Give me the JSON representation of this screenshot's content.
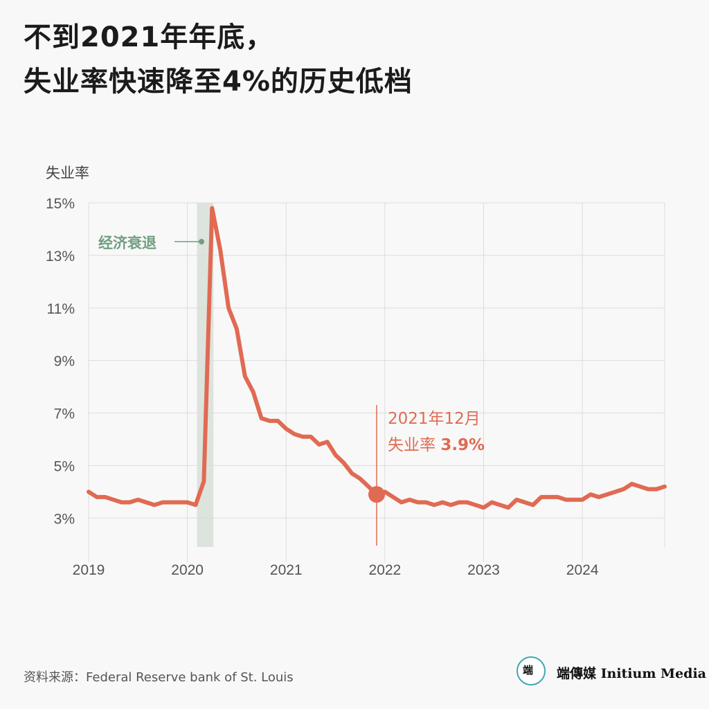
{
  "title": {
    "line1": "不到2021年年底，",
    "line2": "失业率快速降至4%的历史低档"
  },
  "chart_data": {
    "type": "line",
    "ylabel": "失业率",
    "y_ticks": [
      3,
      5,
      7,
      9,
      11,
      13,
      15
    ],
    "y_tick_labels": [
      "3%",
      "5%",
      "7%",
      "9%",
      "11%",
      "13%",
      "15%"
    ],
    "ylim": [
      1.9,
      15.0
    ],
    "x_ticks": [
      "2019",
      "2020",
      "2021",
      "2022",
      "2023",
      "2024"
    ],
    "x_range": [
      "2019-01",
      "2024-11"
    ],
    "grid": true,
    "line_color": "#e06a52",
    "recession": {
      "label": "经济衰退",
      "start": "2020-02",
      "end": "2020-04",
      "color": "#dde3dd",
      "label_color": "#6f9e80"
    },
    "annotation": {
      "date": "2021-12",
      "value": 3.9,
      "line1": "2021年12月",
      "line2_prefix": "失业率 ",
      "line2_value": "3.9%"
    },
    "series": [
      {
        "x": [
          "2019-01",
          "2019-02",
          "2019-03",
          "2019-04",
          "2019-05",
          "2019-06",
          "2019-07",
          "2019-08",
          "2019-09",
          "2019-10",
          "2019-11",
          "2019-12",
          "2020-01",
          "2020-02",
          "2020-03",
          "2020-04",
          "2020-05",
          "2020-06",
          "2020-07",
          "2020-08",
          "2020-09",
          "2020-10",
          "2020-11",
          "2020-12",
          "2021-01",
          "2021-02",
          "2021-03",
          "2021-04",
          "2021-05",
          "2021-06",
          "2021-07",
          "2021-08",
          "2021-09",
          "2021-10",
          "2021-11",
          "2021-12",
          "2022-01",
          "2022-02",
          "2022-03",
          "2022-04",
          "2022-05",
          "2022-06",
          "2022-07",
          "2022-08",
          "2022-09",
          "2022-10",
          "2022-11",
          "2022-12",
          "2023-01",
          "2023-02",
          "2023-03",
          "2023-04",
          "2023-05",
          "2023-06",
          "2023-07",
          "2023-08",
          "2023-09",
          "2023-10",
          "2023-11",
          "2023-12",
          "2024-01",
          "2024-02",
          "2024-03",
          "2024-04",
          "2024-05",
          "2024-06",
          "2024-07",
          "2024-08",
          "2024-09",
          "2024-10",
          "2024-11"
        ],
        "values": [
          4.0,
          3.8,
          3.8,
          3.7,
          3.6,
          3.6,
          3.7,
          3.6,
          3.5,
          3.6,
          3.6,
          3.6,
          3.6,
          3.5,
          4.4,
          14.8,
          13.2,
          11.0,
          10.2,
          8.4,
          7.8,
          6.8,
          6.7,
          6.7,
          6.4,
          6.2,
          6.1,
          6.1,
          5.8,
          5.9,
          5.4,
          5.1,
          4.7,
          4.5,
          4.2,
          3.9,
          4.0,
          3.8,
          3.6,
          3.7,
          3.6,
          3.6,
          3.5,
          3.6,
          3.5,
          3.6,
          3.6,
          3.5,
          3.4,
          3.6,
          3.5,
          3.4,
          3.7,
          3.6,
          3.5,
          3.8,
          3.8,
          3.8,
          3.7,
          3.7,
          3.7,
          3.9,
          3.8,
          3.9,
          4.0,
          4.1,
          4.3,
          4.2,
          4.1,
          4.1,
          4.2
        ]
      }
    ]
  },
  "footer": {
    "source": "资料来源：Federal Reserve bank of St. Louis",
    "logo_text": "端傳媒 Initium Media",
    "logo_glyph": "端"
  }
}
